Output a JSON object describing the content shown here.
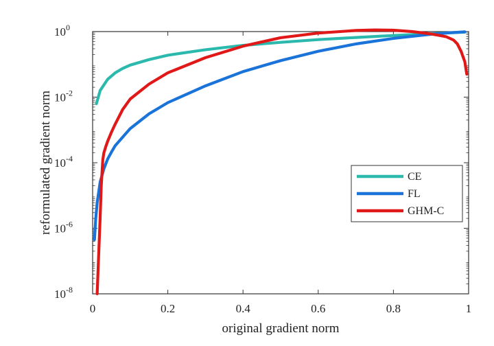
{
  "chart_data": {
    "type": "line",
    "title": "",
    "xlabel": "original gradient norm",
    "ylabel": "reformulated gradient norm",
    "xlim": [
      0,
      1
    ],
    "ylim_exponent": [
      -8,
      0
    ],
    "y_scale": "log",
    "grid": false,
    "legend_position": "lower-right",
    "x_ticks": [
      "0",
      "0.2",
      "0.4",
      "0.6",
      "0.8",
      "1"
    ],
    "y_ticks": [
      {
        "value": 1e-08,
        "base": "10",
        "exp": "-8"
      },
      {
        "value": 1e-06,
        "base": "10",
        "exp": "-6"
      },
      {
        "value": 0.0001,
        "base": "10",
        "exp": "-4"
      },
      {
        "value": 0.01,
        "base": "10",
        "exp": "-2"
      },
      {
        "value": 1,
        "base": "10",
        "exp": "0"
      }
    ],
    "series": [
      {
        "name": "CE",
        "color": "#2cb9ad",
        "points": [
          [
            0.01,
            0.0063
          ],
          [
            0.02,
            0.016
          ],
          [
            0.04,
            0.035
          ],
          [
            0.06,
            0.055
          ],
          [
            0.08,
            0.075
          ],
          [
            0.1,
            0.095
          ],
          [
            0.15,
            0.14
          ],
          [
            0.2,
            0.19
          ],
          [
            0.3,
            0.28
          ],
          [
            0.4,
            0.38
          ],
          [
            0.5,
            0.47
          ],
          [
            0.6,
            0.57
          ],
          [
            0.7,
            0.66
          ],
          [
            0.8,
            0.76
          ],
          [
            0.9,
            0.86
          ],
          [
            0.99,
            0.96
          ]
        ]
      },
      {
        "name": "FL",
        "color": "#1a73d9",
        "points": [
          [
            0.005,
            4.5e-07
          ],
          [
            0.008,
            1.8e-06
          ],
          [
            0.012,
            6e-06
          ],
          [
            0.02,
            2.6e-05
          ],
          [
            0.03,
            6.5e-05
          ],
          [
            0.04,
            0.00013
          ],
          [
            0.05,
            0.00021
          ],
          [
            0.06,
            0.00033
          ],
          [
            0.08,
            0.0006
          ],
          [
            0.1,
            0.0011
          ],
          [
            0.15,
            0.0031
          ],
          [
            0.2,
            0.0068
          ],
          [
            0.3,
            0.022
          ],
          [
            0.4,
            0.06
          ],
          [
            0.5,
            0.13
          ],
          [
            0.6,
            0.25
          ],
          [
            0.7,
            0.42
          ],
          [
            0.8,
            0.62
          ],
          [
            0.9,
            0.83
          ],
          [
            0.95,
            0.92
          ],
          [
            0.99,
            0.98
          ]
        ]
      },
      {
        "name": "GHM-C",
        "color": "#e01818",
        "points": [
          [
            0.012,
            1e-08
          ],
          [
            0.016,
            1.5e-07
          ],
          [
            0.02,
            2.2e-06
          ],
          [
            0.023,
            2e-05
          ],
          [
            0.027,
            0.00012
          ],
          [
            0.03,
            0.0002
          ],
          [
            0.035,
            0.00031
          ],
          [
            0.04,
            0.00045
          ],
          [
            0.05,
            0.00085
          ],
          [
            0.06,
            0.0015
          ],
          [
            0.08,
            0.0042
          ],
          [
            0.1,
            0.0088
          ],
          [
            0.15,
            0.025
          ],
          [
            0.2,
            0.055
          ],
          [
            0.3,
            0.16
          ],
          [
            0.4,
            0.36
          ],
          [
            0.5,
            0.65
          ],
          [
            0.6,
            0.9
          ],
          [
            0.7,
            1.08
          ],
          [
            0.75,
            1.12
          ],
          [
            0.8,
            1.1
          ],
          [
            0.85,
            1.0
          ],
          [
            0.9,
            0.85
          ],
          [
            0.94,
            0.7
          ],
          [
            0.96,
            0.55
          ],
          [
            0.97,
            0.42
          ],
          [
            0.98,
            0.25
          ],
          [
            0.99,
            0.12
          ],
          [
            0.995,
            0.05
          ]
        ]
      }
    ]
  }
}
